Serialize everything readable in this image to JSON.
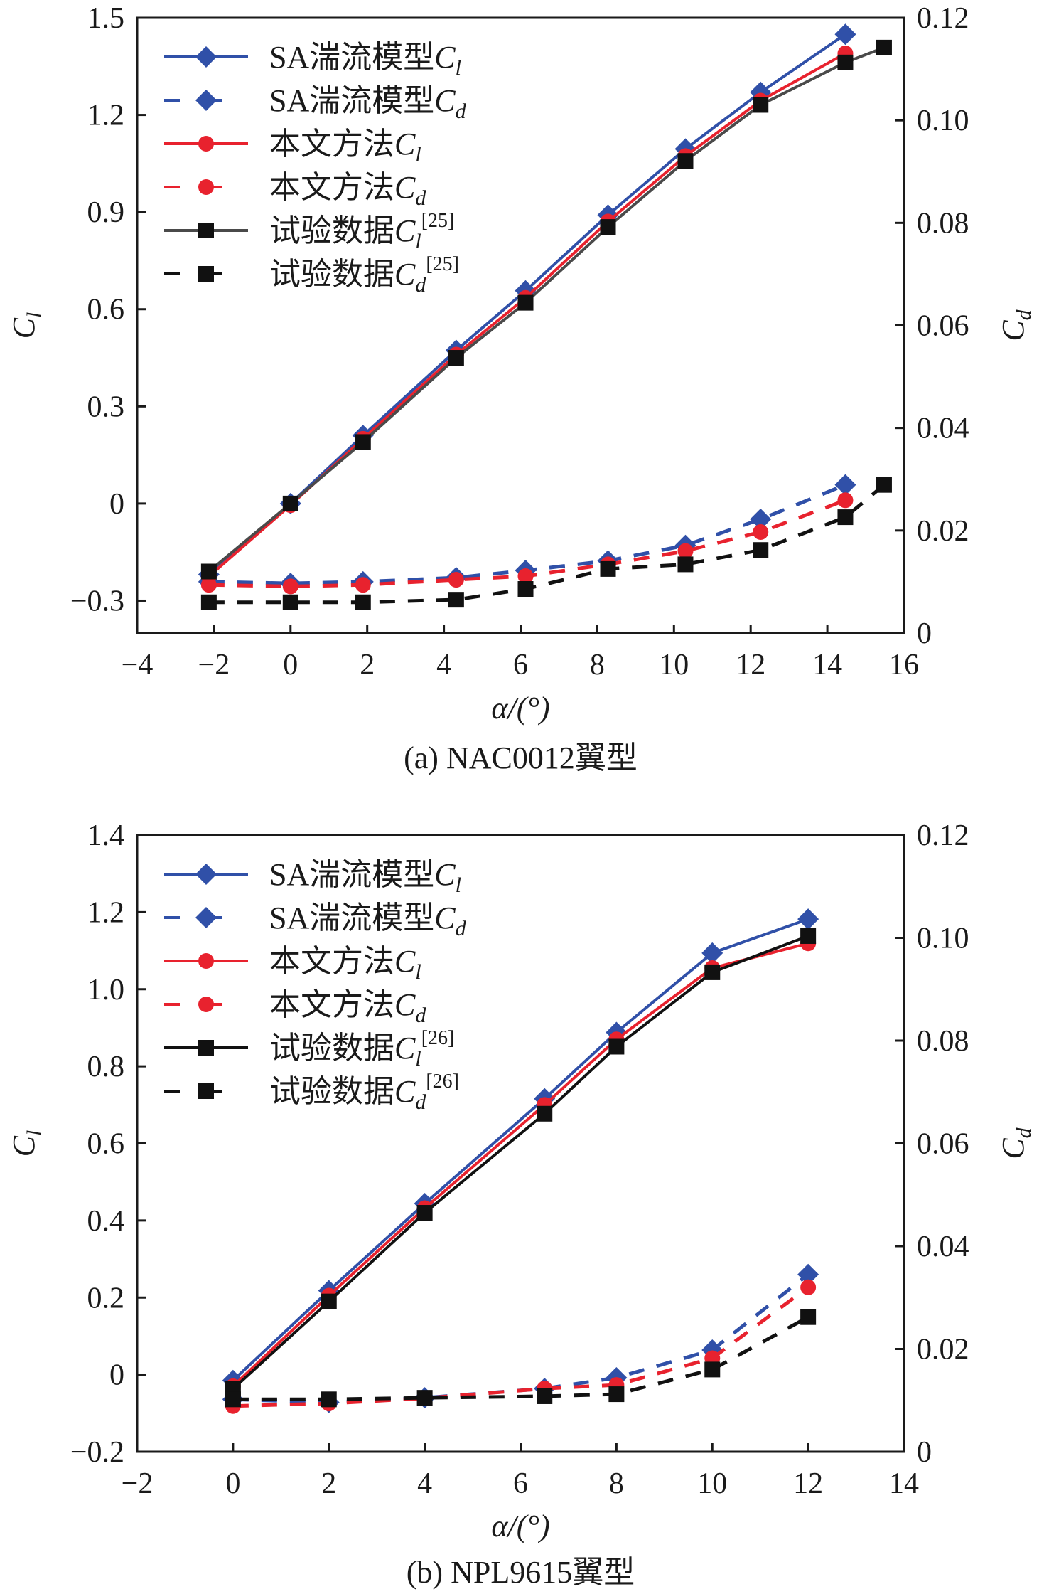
{
  "chart_data": [
    {
      "type": "line",
      "id": "a",
      "caption": "(a) NAC0012翼型",
      "xlabel": "α/(°)",
      "ylabel_left": "C_l",
      "ylabel_right": "C_d",
      "xlim": [
        -4,
        16
      ],
      "xticks": [
        -4,
        -2,
        0,
        2,
        4,
        6,
        8,
        10,
        12,
        14,
        16
      ],
      "ylim_left": [
        -0.4,
        1.5
      ],
      "yticks_left": [
        -0.3,
        0,
        0.3,
        0.6,
        0.9,
        1.2,
        1.5
      ],
      "ytick_labels_left": [
        "−0.3",
        "0",
        "0.3",
        "0.6",
        "0.9",
        "1.2",
        "1.5"
      ],
      "ylim_right": [
        0,
        0.12
      ],
      "yticks_right": [
        0,
        0.02,
        0.04,
        0.06,
        0.08,
        0.1,
        0.12
      ],
      "ytick_labels_right": [
        "0",
        "0.02",
        "0.04",
        "0.06",
        "0.08",
        "0.10",
        "0.12"
      ],
      "grid": false,
      "legend_position": "top-left",
      "series": [
        {
          "name": "SA湍流模型C_l",
          "label": "SA湍流模型",
          "sym": "C",
          "sub": "l",
          "sup": "",
          "axis": "left",
          "color": "#3050a8",
          "dash": false,
          "marker": "diamond",
          "x": [
            -2.13,
            0,
            1.89,
            4.32,
            6.13,
            8.28,
            10.3,
            12.26,
            14.47
          ],
          "y": [
            -0.219,
            0.0,
            0.21,
            0.473,
            0.657,
            0.891,
            1.095,
            1.27,
            1.449
          ]
        },
        {
          "name": "SA湍流模型C_d",
          "label": "SA湍流模型",
          "sym": "C",
          "sub": "d",
          "sup": "",
          "axis": "right",
          "color": "#3050a8",
          "dash": true,
          "marker": "diamond",
          "x": [
            -2.13,
            0,
            1.89,
            4.32,
            6.13,
            8.28,
            10.3,
            12.26,
            14.47
          ],
          "y": [
            0.01,
            0.0097,
            0.01,
            0.0108,
            0.0122,
            0.0141,
            0.0171,
            0.0222,
            0.0289
          ]
        },
        {
          "name": "本文方法C_l",
          "label": "本文方法",
          "sym": "C",
          "sub": "l",
          "sup": "",
          "axis": "left",
          "color": "#e8222e",
          "dash": false,
          "marker": "circle",
          "x": [
            -2.13,
            0,
            1.89,
            4.32,
            6.13,
            8.28,
            10.3,
            12.26,
            14.47
          ],
          "y": [
            -0.225,
            -0.005,
            0.2,
            0.46,
            0.635,
            0.871,
            1.073,
            1.244,
            1.39
          ]
        },
        {
          "name": "本文方法C_d",
          "label": "本文方法",
          "sym": "C",
          "sub": "d",
          "sup": "",
          "axis": "right",
          "color": "#e8222e",
          "dash": true,
          "marker": "circle",
          "x": [
            -2.13,
            0,
            1.89,
            4.32,
            6.13,
            8.28,
            10.3,
            12.26,
            14.47
          ],
          "y": [
            0.0094,
            0.0091,
            0.0094,
            0.0104,
            0.0111,
            0.0134,
            0.016,
            0.0197,
            0.0259
          ]
        },
        {
          "name": "试验数据C_l[25]",
          "label": "试验数据",
          "sym": "C",
          "sub": "l",
          "sup": "[25]",
          "axis": "left",
          "color": "#4a4a4a",
          "marker_color": "#111111",
          "dash": false,
          "marker": "square",
          "x": [
            -2.13,
            0,
            1.89,
            4.32,
            6.13,
            8.28,
            10.3,
            12.26,
            14.47,
            15.48
          ],
          "y": [
            -0.21,
            0.0,
            0.19,
            0.45,
            0.62,
            0.854,
            1.058,
            1.231,
            1.362,
            1.408
          ]
        },
        {
          "name": "试验数据C_d[25]",
          "label": "试验数据",
          "sym": "C",
          "sub": "d",
          "sup": "[25]",
          "axis": "right",
          "color": "#111111",
          "dash": true,
          "marker": "square",
          "x": [
            -2.13,
            0,
            1.89,
            4.32,
            6.13,
            8.28,
            10.3,
            12.26,
            14.47,
            15.48
          ],
          "y": [
            0.006,
            0.006,
            0.006,
            0.0065,
            0.0086,
            0.0125,
            0.0134,
            0.0162,
            0.0226,
            0.0289
          ]
        }
      ]
    },
    {
      "type": "line",
      "id": "b",
      "caption": "(b) NPL9615翼型",
      "xlabel": "α/(°)",
      "ylabel_left": "C_l",
      "ylabel_right": "C_d",
      "xlim": [
        -2,
        14
      ],
      "xticks": [
        -2,
        0,
        2,
        4,
        6,
        8,
        10,
        12,
        14
      ],
      "ylim_left": [
        -0.2,
        1.4
      ],
      "yticks_left": [
        -0.2,
        0,
        0.2,
        0.4,
        0.6,
        0.8,
        1.0,
        1.2,
        1.4
      ],
      "ytick_labels_left": [
        "−0.2",
        "0",
        "0.2",
        "0.4",
        "0.6",
        "0.8",
        "1.0",
        "1.2",
        "1.4"
      ],
      "ylim_right": [
        0,
        0.12
      ],
      "yticks_right": [
        0,
        0.02,
        0.04,
        0.06,
        0.08,
        0.1,
        0.12
      ],
      "ytick_labels_right": [
        "0",
        "0.02",
        "0.04",
        "0.06",
        "0.08",
        "0.10",
        "0.12"
      ],
      "grid": false,
      "legend_position": "top-left",
      "series": [
        {
          "name": "SA湍流模型C_l",
          "label": "SA湍流模型",
          "sym": "C",
          "sub": "l",
          "sup": "",
          "axis": "left",
          "color": "#3050a8",
          "dash": false,
          "marker": "diamond",
          "x": [
            0,
            2,
            4,
            6.5,
            8,
            10,
            12
          ],
          "y": [
            -0.015,
            0.218,
            0.444,
            0.716,
            0.888,
            1.094,
            1.182
          ]
        },
        {
          "name": "SA湍流模型C_d",
          "label": "SA湍流模型",
          "sym": "C",
          "sub": "d",
          "sup": "",
          "axis": "right",
          "color": "#3050a8",
          "dash": true,
          "marker": "diamond",
          "x": [
            0,
            2,
            4,
            6.5,
            8,
            10,
            12
          ],
          "y": [
            0.0102,
            0.0096,
            0.0105,
            0.0123,
            0.0144,
            0.0198,
            0.0345
          ]
        },
        {
          "name": "本文方法C_l",
          "label": "本文方法",
          "sym": "C",
          "sub": "l",
          "sup": "",
          "axis": "left",
          "color": "#e8222e",
          "dash": false,
          "marker": "circle",
          "x": [
            0,
            2,
            4,
            6.5,
            8,
            10,
            12
          ],
          "y": [
            -0.03,
            0.205,
            0.432,
            0.7,
            0.87,
            1.055,
            1.119
          ]
        },
        {
          "name": "本文方法C_d",
          "label": "本文方法",
          "sym": "C",
          "sub": "d",
          "sup": "",
          "axis": "right",
          "color": "#e8222e",
          "dash": true,
          "marker": "circle",
          "x": [
            0,
            2,
            4,
            6.5,
            8,
            10,
            12
          ],
          "y": [
            0.0089,
            0.0094,
            0.0104,
            0.0123,
            0.013,
            0.0182,
            0.032
          ]
        },
        {
          "name": "试验数据C_l[26]",
          "label": "试验数据",
          "sym": "C",
          "sub": "l",
          "sup": "[26]",
          "axis": "left",
          "color": "#111111",
          "dash": false,
          "marker": "square",
          "x": [
            0,
            2,
            4,
            6.5,
            8,
            10,
            12
          ],
          "y": [
            -0.037,
            0.19,
            0.42,
            0.677,
            0.851,
            1.044,
            1.138
          ]
        },
        {
          "name": "试验数据C_d[26]",
          "label": "试验数据",
          "sym": "C",
          "sub": "d",
          "sup": "[26]",
          "axis": "right",
          "color": "#111111",
          "dash": true,
          "marker": "square",
          "x": [
            0,
            2,
            4,
            6.5,
            8,
            10,
            12
          ],
          "y": [
            0.0102,
            0.0102,
            0.0105,
            0.0108,
            0.0112,
            0.016,
            0.0262
          ]
        }
      ]
    }
  ]
}
